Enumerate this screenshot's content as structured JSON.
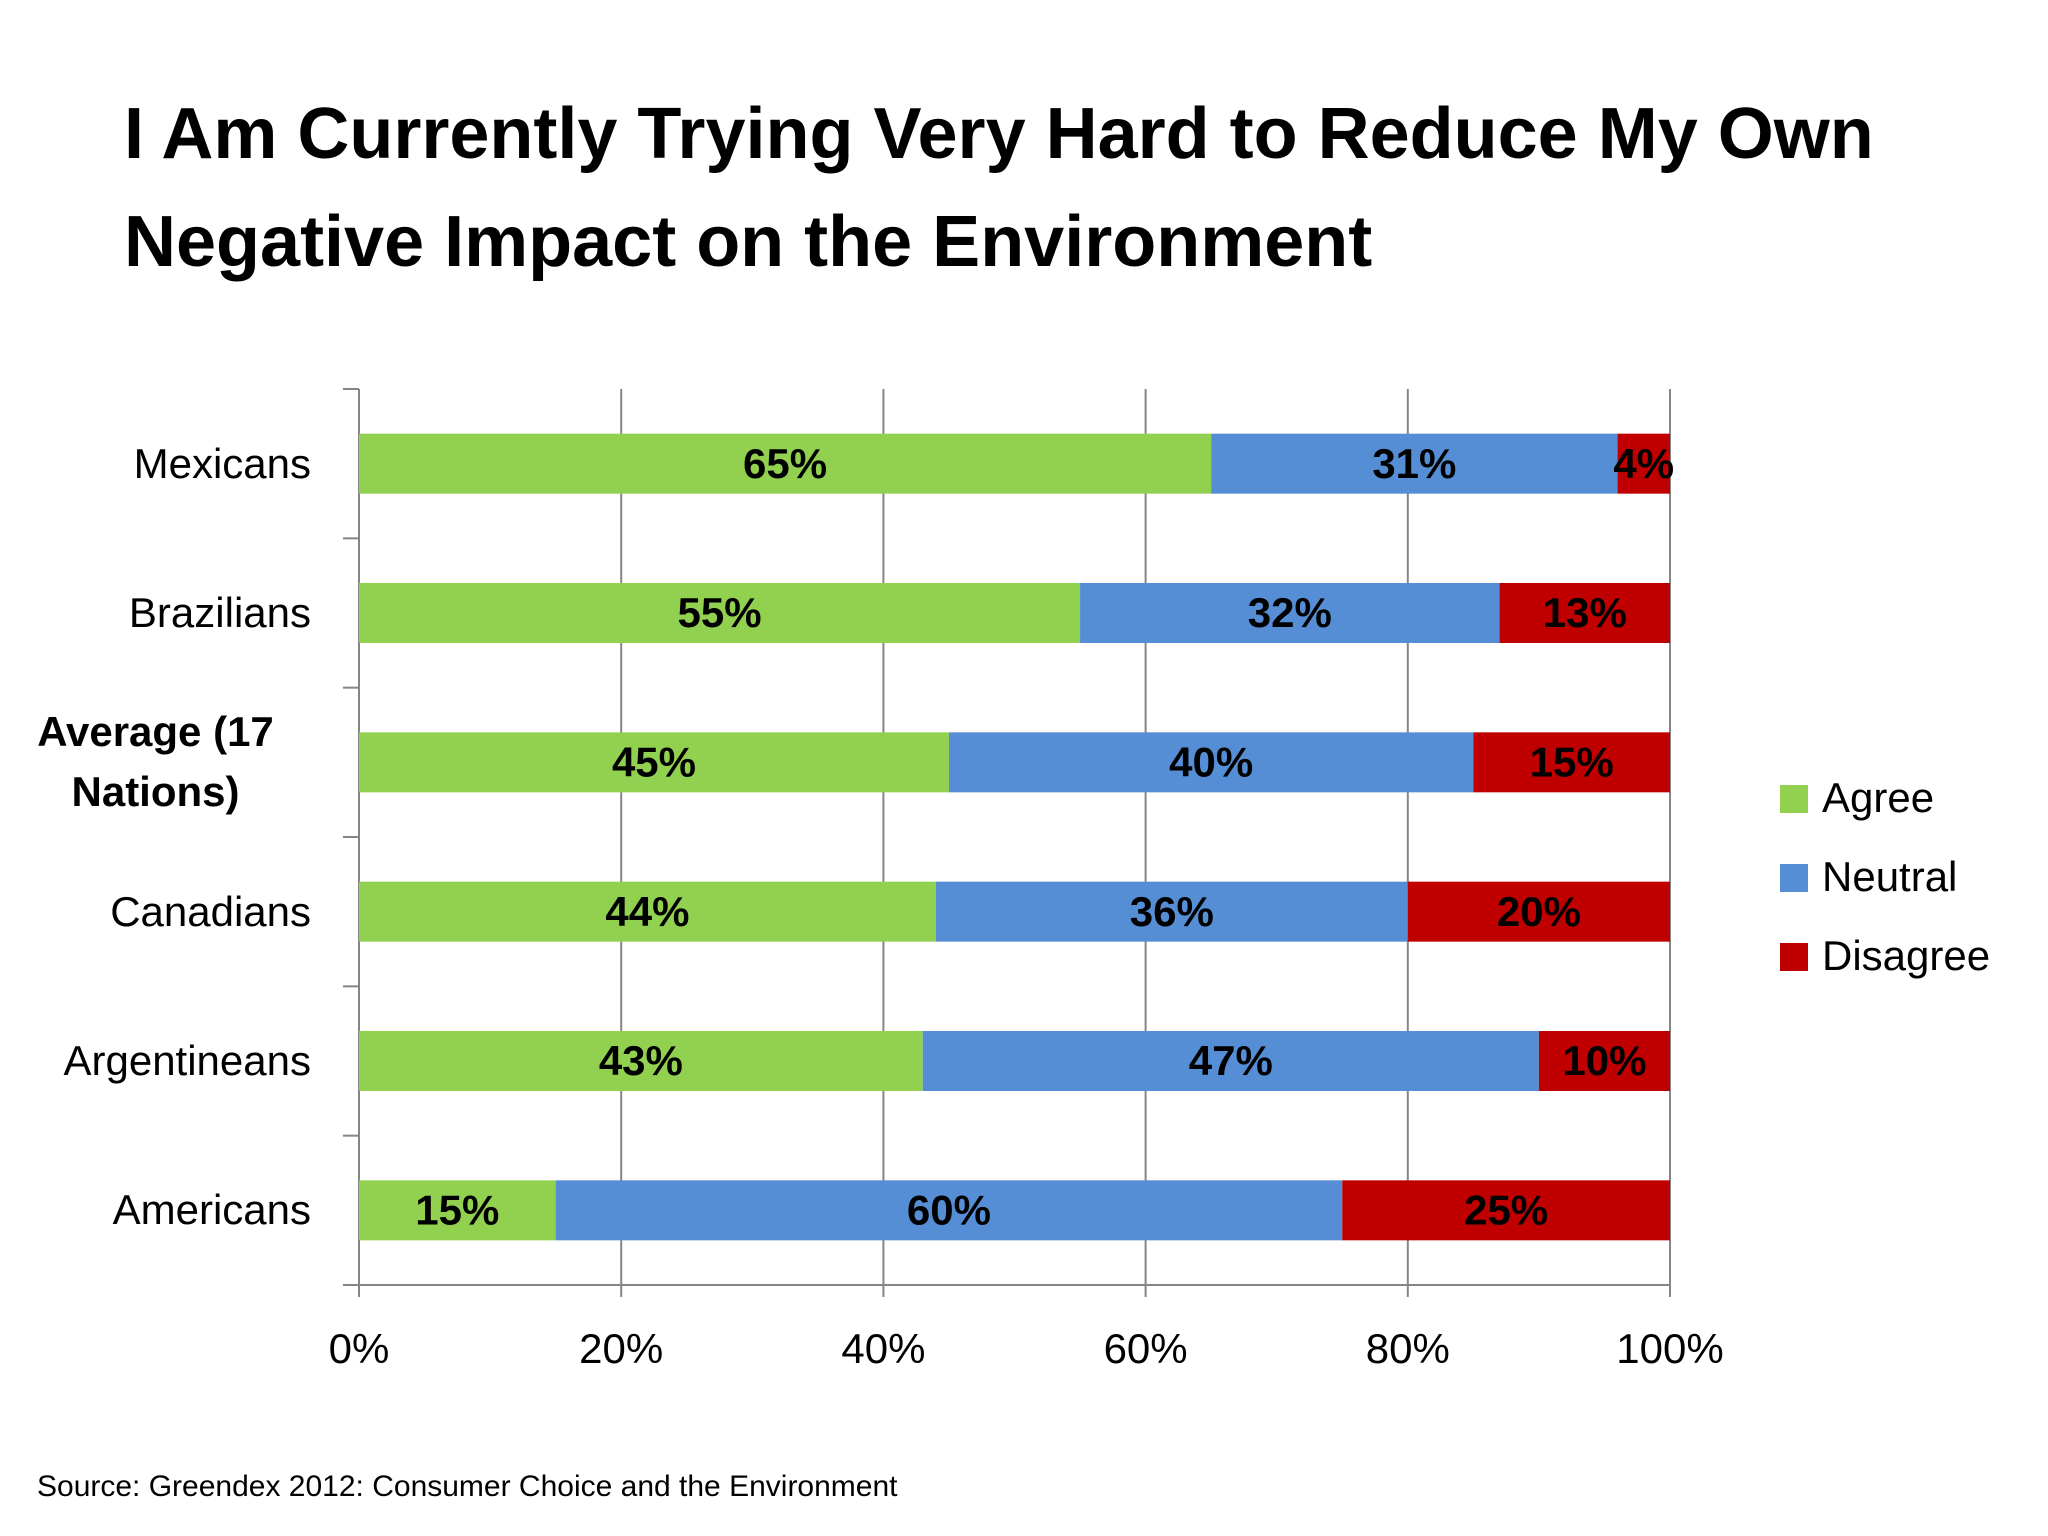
{
  "chart_data": {
    "type": "stacked-bar-horizontal",
    "title": "I Am Currently Trying Very Hard to Reduce My Own Negative Impact on the Environment",
    "source": "Source: Greendex 2012: Consumer Choice and the Environment",
    "categories": [
      "Mexicans",
      "Brazilians",
      "Average (17 Nations)",
      "Canadians",
      "Argentineans",
      "Americans"
    ],
    "series": [
      {
        "name": "Agree",
        "color": "#92d050",
        "values": [
          65,
          55,
          45,
          44,
          43,
          15
        ],
        "value_labels": [
          "65%",
          "55%",
          "45%",
          "44%",
          "43%",
          "15%"
        ]
      },
      {
        "name": "Neutral",
        "color": "#558ed5",
        "values": [
          31,
          32,
          40,
          36,
          47,
          60
        ],
        "value_labels": [
          "31%",
          "32%",
          "40%",
          "36%",
          "47%",
          "60%"
        ]
      },
      {
        "name": "Disagree",
        "color": "#c00000",
        "values": [
          4,
          13,
          15,
          20,
          10,
          25
        ],
        "value_labels": [
          "4%",
          "13%",
          "15%",
          "20%",
          "10%",
          "25%"
        ]
      }
    ],
    "xlim": [
      0,
      100
    ],
    "xticks": [
      {
        "value": 0,
        "label": "0%"
      },
      {
        "value": 20,
        "label": "20%"
      },
      {
        "value": 40,
        "label": "40%"
      },
      {
        "value": 60,
        "label": "60%"
      },
      {
        "value": 80,
        "label": "80%"
      },
      {
        "value": 100,
        "label": "100%"
      }
    ],
    "grid": true,
    "legend": "right"
  }
}
